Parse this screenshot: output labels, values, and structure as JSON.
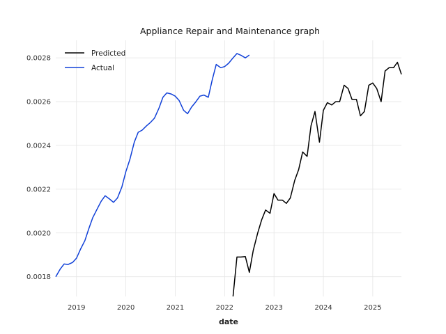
{
  "chart_data": {
    "type": "line",
    "title": "Appliance Repair and Maintenance graph",
    "xlabel": "date",
    "ylabel": "",
    "xlim": [
      2018.58,
      2025.58
    ],
    "ylim": [
      0.00171,
      0.00288
    ],
    "x_ticks": [
      2019,
      2020,
      2021,
      2022,
      2023,
      2024,
      2025
    ],
    "x_tick_labels": [
      "2019",
      "2020",
      "2021",
      "2022",
      "2023",
      "2024",
      "2025"
    ],
    "y_ticks": [
      0.0018,
      0.002,
      0.0022,
      0.0024,
      0.0026,
      0.0028
    ],
    "y_tick_labels": [
      "0.0018",
      "0.0020",
      "0.0022",
      "0.0024",
      "0.0026",
      "0.0028"
    ],
    "grid": true,
    "legend_position": "top-left",
    "series": [
      {
        "name": "Predicted",
        "color": "#000000",
        "points": [
          [
            2022.17,
            0.00171
          ],
          [
            2022.25,
            0.00189
          ],
          [
            2022.33,
            0.00189
          ],
          [
            2022.42,
            0.001892
          ],
          [
            2022.5,
            0.00182
          ],
          [
            2022.58,
            0.00192
          ],
          [
            2022.67,
            0.002
          ],
          [
            2022.75,
            0.00206
          ],
          [
            2022.83,
            0.002105
          ],
          [
            2022.92,
            0.00209
          ],
          [
            2023.0,
            0.00218
          ],
          [
            2023.08,
            0.00215
          ],
          [
            2023.17,
            0.00215
          ],
          [
            2023.25,
            0.002135
          ],
          [
            2023.33,
            0.00216
          ],
          [
            2023.42,
            0.00224
          ],
          [
            2023.5,
            0.00229
          ],
          [
            2023.58,
            0.00237
          ],
          [
            2023.67,
            0.00235
          ],
          [
            2023.75,
            0.00249
          ],
          [
            2023.83,
            0.002555
          ],
          [
            2023.92,
            0.002415
          ],
          [
            2024.0,
            0.00256
          ],
          [
            2024.08,
            0.002595
          ],
          [
            2024.17,
            0.002585
          ],
          [
            2024.25,
            0.0026
          ],
          [
            2024.33,
            0.0026
          ],
          [
            2024.42,
            0.002675
          ],
          [
            2024.5,
            0.00266
          ],
          [
            2024.58,
            0.00261
          ],
          [
            2024.67,
            0.00261
          ],
          [
            2024.75,
            0.002535
          ],
          [
            2024.83,
            0.002555
          ],
          [
            2024.92,
            0.002675
          ],
          [
            2025.0,
            0.002685
          ],
          [
            2025.08,
            0.00266
          ],
          [
            2025.17,
            0.0026
          ],
          [
            2025.25,
            0.00274
          ],
          [
            2025.33,
            0.002755
          ],
          [
            2025.42,
            0.002755
          ],
          [
            2025.5,
            0.00278
          ],
          [
            2025.58,
            0.002725
          ]
        ]
      },
      {
        "name": "Actual",
        "color": "#1040d8",
        "points": [
          [
            2018.58,
            0.0018
          ],
          [
            2018.67,
            0.001835
          ],
          [
            2018.75,
            0.001858
          ],
          [
            2018.83,
            0.001856
          ],
          [
            2018.92,
            0.001865
          ],
          [
            2019.0,
            0.001885
          ],
          [
            2019.08,
            0.001925
          ],
          [
            2019.17,
            0.001965
          ],
          [
            2019.25,
            0.00202
          ],
          [
            2019.33,
            0.00207
          ],
          [
            2019.42,
            0.00211
          ],
          [
            2019.5,
            0.002145
          ],
          [
            2019.58,
            0.00217
          ],
          [
            2019.67,
            0.002155
          ],
          [
            2019.75,
            0.00214
          ],
          [
            2019.83,
            0.00216
          ],
          [
            2019.92,
            0.00221
          ],
          [
            2020.0,
            0.00228
          ],
          [
            2020.08,
            0.002335
          ],
          [
            2020.17,
            0.002415
          ],
          [
            2020.25,
            0.00246
          ],
          [
            2020.33,
            0.00247
          ],
          [
            2020.42,
            0.00249
          ],
          [
            2020.5,
            0.002505
          ],
          [
            2020.58,
            0.002525
          ],
          [
            2020.67,
            0.00257
          ],
          [
            2020.75,
            0.00262
          ],
          [
            2020.83,
            0.00264
          ],
          [
            2020.92,
            0.002635
          ],
          [
            2021.0,
            0.002625
          ],
          [
            2021.08,
            0.002605
          ],
          [
            2021.17,
            0.00256
          ],
          [
            2021.25,
            0.002545
          ],
          [
            2021.33,
            0.002575
          ],
          [
            2021.42,
            0.0026
          ],
          [
            2021.5,
            0.002625
          ],
          [
            2021.58,
            0.00263
          ],
          [
            2021.67,
            0.00262
          ],
          [
            2021.75,
            0.0027
          ],
          [
            2021.83,
            0.00277
          ],
          [
            2021.92,
            0.002755
          ],
          [
            2022.0,
            0.00276
          ],
          [
            2022.08,
            0.002775
          ],
          [
            2022.17,
            0.0028
          ],
          [
            2022.25,
            0.00282
          ],
          [
            2022.33,
            0.002812
          ],
          [
            2022.42,
            0.0028
          ],
          [
            2022.5,
            0.002813
          ]
        ]
      }
    ]
  }
}
